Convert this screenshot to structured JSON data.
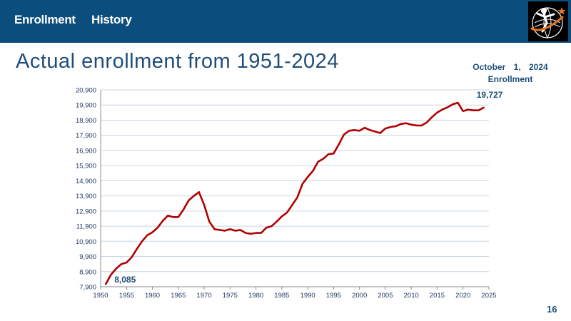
{
  "nav": {
    "item1": "Enrollment",
    "item2": "History"
  },
  "logo_icon": "institution-logo-icon",
  "title": "Actual enrollment from 1951-2024",
  "enrollment_label": {
    "line1": "October 1, 2024",
    "line2": "Enrollment"
  },
  "page_number": "16",
  "colors": {
    "header_bg": "#0b4d7d",
    "title": "#1f4e79",
    "series_line": "#b00000",
    "grid": "#c9d6e3"
  },
  "chart_data": {
    "type": "line",
    "title": "",
    "xlabel": "",
    "ylabel": "",
    "xlim": [
      1950,
      2025
    ],
    "ylim": [
      7900,
      20900
    ],
    "xticks": [
      1950,
      1955,
      1960,
      1965,
      1970,
      1975,
      1980,
      1985,
      1990,
      1995,
      2000,
      2005,
      2010,
      2015,
      2020,
      2025
    ],
    "yticks": [
      7900,
      8900,
      9900,
      10900,
      11900,
      12900,
      13900,
      14900,
      15900,
      16900,
      17900,
      18900,
      19900,
      20900
    ],
    "ytick_labels": [
      "7,900",
      "8,900",
      "9,900",
      "10,900",
      "11,900",
      "12,900",
      "13,900",
      "14,900",
      "15,900",
      "16,900",
      "17,900",
      "18,900",
      "19,900",
      "20,900"
    ],
    "grid": "horizontal",
    "x": [
      1951,
      1952,
      1953,
      1954,
      1955,
      1956,
      1957,
      1958,
      1959,
      1960,
      1961,
      1962,
      1963,
      1964,
      1965,
      1966,
      1967,
      1968,
      1969,
      1970,
      1971,
      1972,
      1973,
      1974,
      1975,
      1976,
      1977,
      1978,
      1979,
      1980,
      1981,
      1982,
      1983,
      1984,
      1985,
      1986,
      1987,
      1988,
      1989,
      1990,
      1991,
      1992,
      1993,
      1994,
      1995,
      1996,
      1997,
      1998,
      1999,
      2000,
      2001,
      2002,
      2003,
      2004,
      2005,
      2006,
      2007,
      2008,
      2009,
      2010,
      2011,
      2012,
      2013,
      2014,
      2015,
      2016,
      2017,
      2018,
      2019,
      2020,
      2021,
      2022,
      2023,
      2024
    ],
    "series": [
      {
        "values": [
          8085,
          8700,
          9100,
          9400,
          9500,
          9850,
          10400,
          10900,
          11300,
          11500,
          11800,
          12250,
          12600,
          12500,
          12500,
          13000,
          13600,
          13900,
          14150,
          13300,
          12200,
          11700,
          11650,
          11600,
          11700,
          11600,
          11650,
          11450,
          11400,
          11450,
          11450,
          11800,
          11900,
          12200,
          12550,
          12800,
          13300,
          13800,
          14700,
          15150,
          15550,
          16150,
          16350,
          16650,
          16700,
          17300,
          17950,
          18200,
          18250,
          18200,
          18400,
          18250,
          18150,
          18050,
          18350,
          18450,
          18500,
          18650,
          18700,
          18600,
          18550,
          18550,
          18750,
          19100,
          19400,
          19600,
          19750,
          19950,
          20050,
          19500,
          19600,
          19550,
          19550,
          19727
        ]
      }
    ],
    "annotations": [
      {
        "x": 1951,
        "y": 8085,
        "text": "8,085"
      },
      {
        "x": 2024,
        "y": 19727,
        "text": "19,727"
      }
    ]
  }
}
